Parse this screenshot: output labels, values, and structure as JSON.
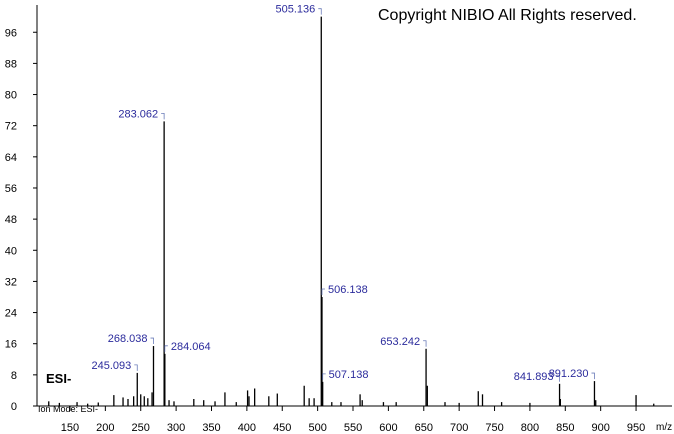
{
  "chart_data": {
    "type": "spectrum",
    "copyright": "Copyright NIBIO All Rights reserved.",
    "mode_label": "ESI-",
    "ion_mode": "Ion Mode: ESI-",
    "x_label": "m/z",
    "color": "#000000",
    "label_color": "#2b2b9c",
    "xlim": [
      103.4,
      1000.8
    ],
    "xticks": [
      150,
      200,
      250,
      300,
      350,
      400,
      450,
      500,
      550,
      600,
      650,
      700,
      750,
      800,
      850,
      900,
      950
    ],
    "ylim": [
      0,
      103
    ],
    "yticks": [
      0,
      8,
      16,
      24,
      32,
      40,
      48,
      56,
      64,
      72,
      80,
      88,
      96
    ],
    "series": [
      {
        "x": [
          120,
          135,
          160,
          175,
          190,
          212,
          225,
          232,
          240,
          250,
          255,
          260,
          266,
          290,
          297,
          325,
          339,
          355,
          369,
          385,
          401,
          403,
          411,
          431,
          443,
          481,
          488,
          495,
          520,
          533,
          560,
          563,
          593,
          611,
          655,
          680,
          700,
          727,
          733,
          760,
          800,
          843,
          893,
          950,
          975
        ],
        "values": [
          1.2,
          0.8,
          1.0,
          0.6,
          0.9,
          2.8,
          2.2,
          1.8,
          2.5,
          3.0,
          2.5,
          2.0,
          3.5,
          1.5,
          1.2,
          1.8,
          1.5,
          1.2,
          3.5,
          1.0,
          4.0,
          2.5,
          4.5,
          2.5,
          3.2,
          5.2,
          2.0,
          2.0,
          1.0,
          1.0,
          3.0,
          1.5,
          1.0,
          1.0,
          5.2,
          1.0,
          0.8,
          3.8,
          3.0,
          1.0,
          0.8,
          1.8,
          1.5,
          2.8,
          0.6
        ]
      },
      {
        "x": [
          245.093,
          268.038,
          283.062,
          284.064,
          505.136,
          506.138,
          507.138,
          653.242,
          841.893,
          891.23
        ],
        "x_labels": [
          "245.093",
          "268.038",
          "283.062",
          "284.064",
          "505.136",
          "506.138",
          "507.138",
          "653.242",
          "841.893",
          "891.230"
        ],
        "values": [
          8.5,
          15.4,
          73.1,
          13.4,
          100,
          28,
          6.2,
          14.7,
          5.7,
          6.4
        ]
      }
    ]
  }
}
